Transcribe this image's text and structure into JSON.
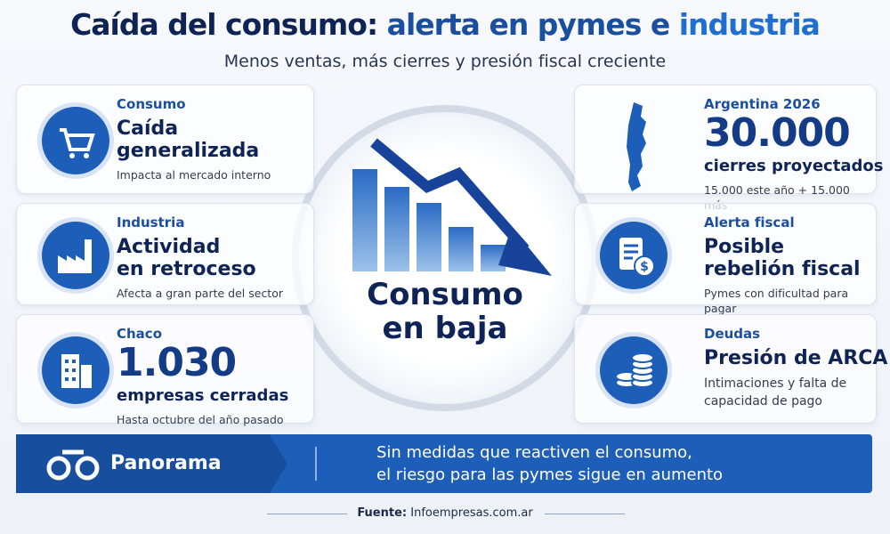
{
  "header": {
    "title": [
      "Caída del consumo:",
      "alerta en pymes e",
      "industria"
    ],
    "subtitle": "Menos ventas, más cierres y presión fiscal creciente"
  },
  "left_cards": [
    {
      "label": "Consumo",
      "headline": [
        "Caída",
        "generalizada"
      ],
      "note": "Impacta al mercado interno"
    },
    {
      "label": "Industria",
      "headline": [
        "Actividad",
        "en retroceso"
      ],
      "note": "Afecta a gran parte del sector"
    },
    {
      "label": "Chaco",
      "figure": "1.030",
      "headline": [
        "empresas cerradas"
      ],
      "note": "Hasta octubre del año pasado"
    }
  ],
  "right_cards": [
    {
      "label": "Argentina 2026",
      "figure": "30.000",
      "headline": [
        "cierres proyectados"
      ],
      "note": "15.000 este año + 15.000 más"
    },
    {
      "label": "Alerta fiscal",
      "headline": [
        "Posible",
        "rebelión fiscal"
      ],
      "note": "Pymes con dificultad para pagar"
    },
    {
      "label": "Deudas",
      "headline": [
        "Presión de ARCA"
      ],
      "note": "Intimaciones y falta de capacidad de pago"
    }
  ],
  "center": {
    "label": [
      "Consumo",
      "en baja"
    ]
  },
  "banner": {
    "label": "Panorama",
    "message": [
      "Sin medidas que reactiven el consumo,",
      "el riesgo para las pymes sigue en aumento"
    ]
  },
  "footer": {
    "source_label": "Fuente:",
    "source": "Infoempresas.com.ar"
  }
}
